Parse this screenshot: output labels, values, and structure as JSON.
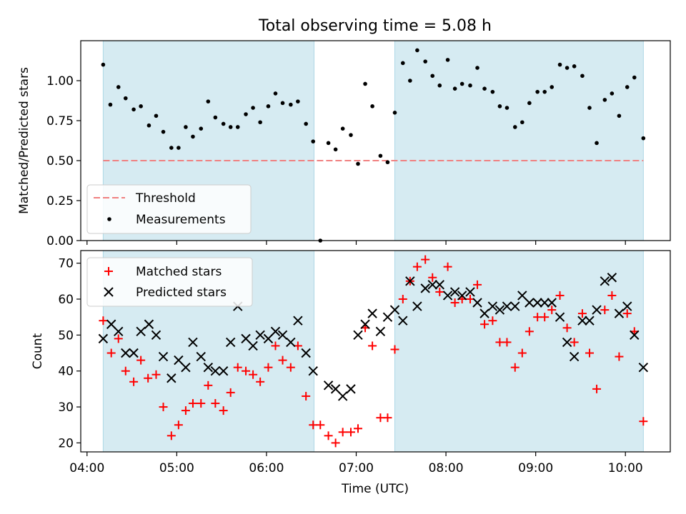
{
  "figure": {
    "title": "Total observing time = 5.08 h",
    "xlabel": "Time (UTC)",
    "x_ticks": [
      "04:00",
      "05:00",
      "06:00",
      "07:00",
      "08:00",
      "09:00",
      "10:00"
    ],
    "x_tick_hours": [
      4,
      5,
      6,
      7,
      8,
      9,
      10
    ],
    "xlim": [
      3.93,
      10.5
    ]
  },
  "chart_data": [
    {
      "type": "scatter",
      "ylabel": "Matched/Predicted stars",
      "ylim": [
        0,
        1.25
      ],
      "y_ticks": [
        0,
        0.25,
        0.5,
        0.75,
        1.0
      ],
      "y_tick_labels": [
        "0.00",
        "0.25",
        "0.50",
        "0.75",
        "1.00"
      ],
      "shaded_intervals": [
        [
          4.18,
          6.53
        ],
        [
          7.43,
          10.2
        ]
      ],
      "threshold": 0.5,
      "legend_position": "lower-left",
      "legend": [
        {
          "label": "Threshold",
          "style": "dashed-line",
          "color": "#f08080"
        },
        {
          "label": "Measurements",
          "style": "dot",
          "color": "#000000"
        }
      ],
      "series": [
        {
          "name": "Measurements",
          "x": [
            4.18,
            4.26,
            4.35,
            4.43,
            4.52,
            4.6,
            4.69,
            4.77,
            4.85,
            4.94,
            5.02,
            5.1,
            5.18,
            5.27,
            5.35,
            5.43,
            5.52,
            5.6,
            5.68,
            5.77,
            5.85,
            5.93,
            6.02,
            6.1,
            6.18,
            6.27,
            6.35,
            6.44,
            6.52,
            6.6,
            6.69,
            6.77,
            6.85,
            6.94,
            7.02,
            7.1,
            7.18,
            7.27,
            7.35,
            7.43,
            7.52,
            7.6,
            7.68,
            7.77,
            7.85,
            7.93,
            8.02,
            8.1,
            8.18,
            8.27,
            8.35,
            8.43,
            8.52,
            8.6,
            8.68,
            8.77,
            8.85,
            8.93,
            9.02,
            9.1,
            9.18,
            9.27,
            9.35,
            9.43,
            9.52,
            9.6,
            9.68,
            9.77,
            9.85,
            9.93,
            10.02,
            10.1,
            10.2
          ],
          "y": [
            1.1,
            0.85,
            0.96,
            0.89,
            0.82,
            0.84,
            0.72,
            0.78,
            0.68,
            0.58,
            0.58,
            0.71,
            0.65,
            0.7,
            0.87,
            0.77,
            0.73,
            0.71,
            0.71,
            0.79,
            0.83,
            0.74,
            0.84,
            0.92,
            0.86,
            0.85,
            0.87,
            0.73,
            0.62,
            0.0,
            0.61,
            0.57,
            0.7,
            0.66,
            0.48,
            0.98,
            0.84,
            0.53,
            0.49,
            0.8,
            1.11,
            1.0,
            1.19,
            1.12,
            1.03,
            0.97,
            1.13,
            0.95,
            0.98,
            0.97,
            1.08,
            0.95,
            0.93,
            0.84,
            0.83,
            0.71,
            0.74,
            0.86,
            0.93,
            0.93,
            0.96,
            1.1,
            1.08,
            1.09,
            1.03,
            0.83,
            0.61,
            0.88,
            0.92,
            0.78,
            0.96,
            1.02,
            0.64
          ]
        }
      ]
    },
    {
      "type": "scatter",
      "ylabel": "Count",
      "ylim": [
        17.5,
        73.5
      ],
      "y_ticks": [
        20,
        30,
        40,
        50,
        60,
        70
      ],
      "shaded_intervals": [
        [
          4.18,
          6.53
        ],
        [
          7.43,
          10.2
        ]
      ],
      "legend_position": "top-left",
      "legend": [
        {
          "label": "Matched stars",
          "style": "plus",
          "color": "#ff0000"
        },
        {
          "label": "Predicted stars",
          "style": "x",
          "color": "#000000"
        }
      ],
      "series": [
        {
          "name": "Matched stars",
          "x": [
            4.18,
            4.27,
            4.35,
            4.43,
            4.52,
            4.6,
            4.68,
            4.77,
            4.85,
            4.94,
            5.02,
            5.1,
            5.18,
            5.27,
            5.35,
            5.43,
            5.52,
            5.6,
            5.68,
            5.77,
            5.85,
            5.93,
            6.02,
            6.1,
            6.18,
            6.27,
            6.35,
            6.44,
            6.52,
            6.6,
            6.69,
            6.77,
            6.85,
            6.94,
            7.02,
            7.1,
            7.18,
            7.27,
            7.35,
            7.43,
            7.52,
            7.6,
            7.68,
            7.77,
            7.85,
            7.93,
            8.02,
            8.1,
            8.18,
            8.27,
            8.35,
            8.43,
            8.52,
            8.6,
            8.68,
            8.77,
            8.85,
            8.93,
            9.02,
            9.1,
            9.18,
            9.27,
            9.35,
            9.43,
            9.52,
            9.6,
            9.68,
            9.77,
            9.85,
            9.93,
            10.02,
            10.1,
            10.2
          ],
          "y": [
            54,
            45,
            49,
            40,
            37,
            43,
            38,
            39,
            30,
            22,
            25,
            29,
            31,
            31,
            36,
            31,
            29,
            34,
            41,
            40,
            39,
            37,
            41,
            47,
            43,
            41,
            47,
            33,
            25,
            25,
            22,
            20,
            23,
            23,
            24,
            52,
            47,
            27,
            27,
            46,
            60,
            65,
            69,
            71,
            66,
            62,
            69,
            59,
            60,
            60,
            64,
            53,
            54,
            48,
            48,
            41,
            45,
            51,
            55,
            55,
            57,
            61,
            52,
            48,
            56,
            45,
            35,
            57,
            61,
            44,
            56,
            51,
            26
          ]
        },
        {
          "name": "Predicted stars",
          "x": [
            4.18,
            4.27,
            4.35,
            4.43,
            4.52,
            4.6,
            4.69,
            4.77,
            4.85,
            4.94,
            5.02,
            5.1,
            5.18,
            5.27,
            5.35,
            5.43,
            5.52,
            5.6,
            5.68,
            5.77,
            5.85,
            5.93,
            6.02,
            6.1,
            6.18,
            6.27,
            6.35,
            6.44,
            6.52,
            6.69,
            6.77,
            6.85,
            6.94,
            7.02,
            7.1,
            7.18,
            7.27,
            7.35,
            7.43,
            7.52,
            7.6,
            7.68,
            7.77,
            7.85,
            7.93,
            8.02,
            8.1,
            8.18,
            8.27,
            8.35,
            8.43,
            8.52,
            8.6,
            8.68,
            8.77,
            8.85,
            8.93,
            9.02,
            9.1,
            9.18,
            9.27,
            9.35,
            9.43,
            9.52,
            9.6,
            9.68,
            9.77,
            9.85,
            9.93,
            10.02,
            10.1,
            10.2
          ],
          "y": [
            49,
            53,
            51,
            45,
            45,
            51,
            53,
            50,
            44,
            38,
            43,
            41,
            48,
            44,
            41,
            40,
            40,
            48,
            58,
            49,
            47,
            50,
            49,
            51,
            50,
            48,
            54,
            45,
            40,
            36,
            35,
            33,
            35,
            50,
            53,
            56,
            51,
            55,
            57,
            54,
            65,
            58,
            63,
            64,
            64,
            61,
            62,
            61,
            62,
            59,
            56,
            58,
            57,
            58,
            58,
            61,
            59,
            59,
            59,
            59,
            55,
            48,
            44,
            54,
            54,
            57,
            65,
            66,
            56,
            58,
            50,
            41
          ]
        }
      ]
    }
  ]
}
